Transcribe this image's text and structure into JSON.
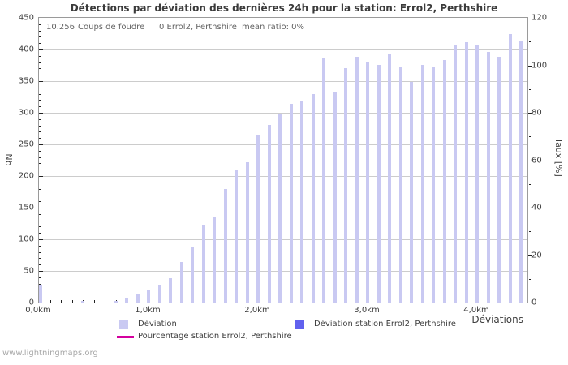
{
  "title": "Détections par déviation des dernières 24h pour la station: Errol2, Perthshire",
  "stats": {
    "total_count": "10.256",
    "total_label": "Coups de foudre",
    "station_count": "0 Errol2, Perthshire",
    "mean_ratio": "mean ratio: 0%"
  },
  "watermark": "www.lightningmaps.org",
  "chart_data": {
    "type": "bar",
    "title": "Détections par déviation des dernières 24h pour la station: Errol2, Perthshire",
    "xlabel": "Déviations",
    "ylabel": "Nb",
    "ylabel_right": "Taux [%]",
    "x_unit": "km",
    "xlim_km": [
      0,
      4.46
    ],
    "ylim": [
      0,
      450
    ],
    "ylim_right_percent": [
      0,
      120
    ],
    "grid": "horizontal-major-lines",
    "legend_position": "bottom",
    "x_tick_labels": [
      "0,0km",
      "1,0km",
      "2,0km",
      "3,0km",
      "4,0km"
    ],
    "x_tick_values_km": [
      0,
      1,
      2,
      3,
      4
    ],
    "x_minor_tick_step_km": 0.1,
    "y_tick_values": [
      0,
      50,
      100,
      150,
      200,
      250,
      300,
      350,
      400,
      450
    ],
    "y_minor_tick_step": 10,
    "y_right_tick_values": [
      0,
      20,
      40,
      60,
      80,
      100,
      120
    ],
    "y_right_minor_tick_step": 10,
    "series": [
      {
        "name": "Déviation",
        "type": "bar",
        "color": "#c9c9f2",
        "x_km": [
          0.0,
          0.4,
          0.7,
          0.8,
          0.9,
          1.0,
          1.1,
          1.2,
          1.3,
          1.4,
          1.5,
          1.6,
          1.7,
          1.8,
          1.9,
          2.0,
          2.1,
          2.2,
          2.3,
          2.4,
          2.5,
          2.6,
          2.7,
          2.8,
          2.9,
          3.0,
          3.1,
          3.2,
          3.3,
          3.4,
          3.5,
          3.6,
          3.7,
          3.8,
          3.9,
          4.0,
          4.1,
          4.2,
          4.3,
          4.4
        ],
        "values": [
          28,
          2,
          3,
          8,
          13,
          19,
          28,
          38,
          64,
          88,
          122,
          134,
          180,
          210,
          222,
          266,
          281,
          298,
          314,
          319,
          329,
          386,
          333,
          370,
          388,
          379,
          376,
          394,
          372,
          349,
          376,
          372,
          383,
          408,
          411,
          407,
          396,
          389,
          424,
          414
        ]
      },
      {
        "name": "Déviation station Errol2, Perthshire",
        "type": "bar",
        "color": "#6161ee",
        "x_km": [],
        "values": []
      },
      {
        "name": "Pourcentage station Errol2, Perthshire",
        "type": "line",
        "color": "#d4009e",
        "x_km": [],
        "values": []
      }
    ]
  },
  "colors": {
    "bar_deviation": "#c9c9f2",
    "bar_station": "#6161ee",
    "percentage_line": "#d4009e",
    "gridline": "#cccccc",
    "plot_border": "#9a9a9a"
  }
}
